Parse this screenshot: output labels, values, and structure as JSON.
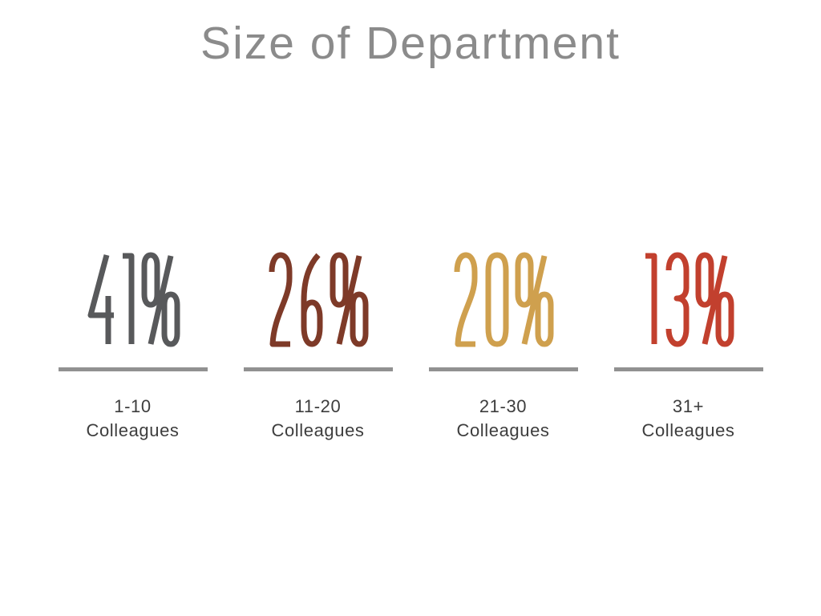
{
  "title": {
    "text": "Size of Department",
    "color": "#8b8b8b"
  },
  "divider_color": "#919191",
  "label_color": "#3d3d3d",
  "stats": [
    {
      "value": "41%",
      "color": "#58595b",
      "range": "1-10",
      "group": "Colleagues"
    },
    {
      "value": "26%",
      "color": "#7e3a28",
      "range": "11-20",
      "group": "Colleagues"
    },
    {
      "value": "20%",
      "color": "#cfa04e",
      "range": "21-30",
      "group": "Colleagues"
    },
    {
      "value": "13%",
      "color": "#c2402e",
      "range": "31+",
      "group": "Colleagues"
    }
  ],
  "chart_data": {
    "type": "bar",
    "title": "Size of Department",
    "categories": [
      "1-10 Colleagues",
      "11-20 Colleagues",
      "21-30 Colleagues",
      "31+ Colleagues"
    ],
    "values": [
      41,
      26,
      20,
      13
    ],
    "unit": "%",
    "value_labels": [
      "41%",
      "26%",
      "20%",
      "13%"
    ],
    "value_colors": [
      "#58595b",
      "#7e3a28",
      "#cfa04e",
      "#c2402e"
    ],
    "legend": false,
    "axes": false,
    "layout": "big-number stat row, divider line under each value, category label below"
  }
}
